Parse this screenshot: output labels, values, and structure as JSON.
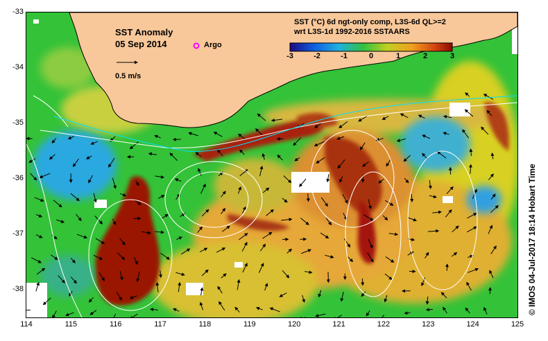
{
  "title": "SST Anomaly",
  "date": "05 Sep 2014",
  "argo_label": "Argo",
  "vector_scale_label": "0.5 m/s",
  "product_line1": "SST (°C) 6d ngt-only comp, L3S-6d QL>=2",
  "product_line2": "wrt L3S-1d 1992-2016 SSTAARS",
  "colorbar": {
    "ticks": [
      "-3",
      "-2",
      "-1",
      "0",
      "1",
      "2",
      "3"
    ],
    "min": -3,
    "max": 3
  },
  "axes": {
    "lon_ticks": [
      "114",
      "115",
      "116",
      "117",
      "118",
      "119",
      "120",
      "121",
      "122",
      "123",
      "124",
      "125"
    ],
    "lat_ticks": [
      "-33",
      "-34",
      "-35",
      "-36",
      "-37",
      "-38"
    ],
    "lon_range": [
      114,
      125
    ],
    "lat_range": [
      -38.5,
      -33
    ]
  },
  "credit": "© IMOS 04-Jul-2017 18:14 Hobart Time",
  "colors": {
    "land": "#f8c89a",
    "anomaly_strong": "#9a1400",
    "anomaly_warm": "#e0a030",
    "anomaly_neutral": "#2ec040",
    "anomaly_cool": "#28a8e0",
    "argo": "#ff00ff"
  }
}
